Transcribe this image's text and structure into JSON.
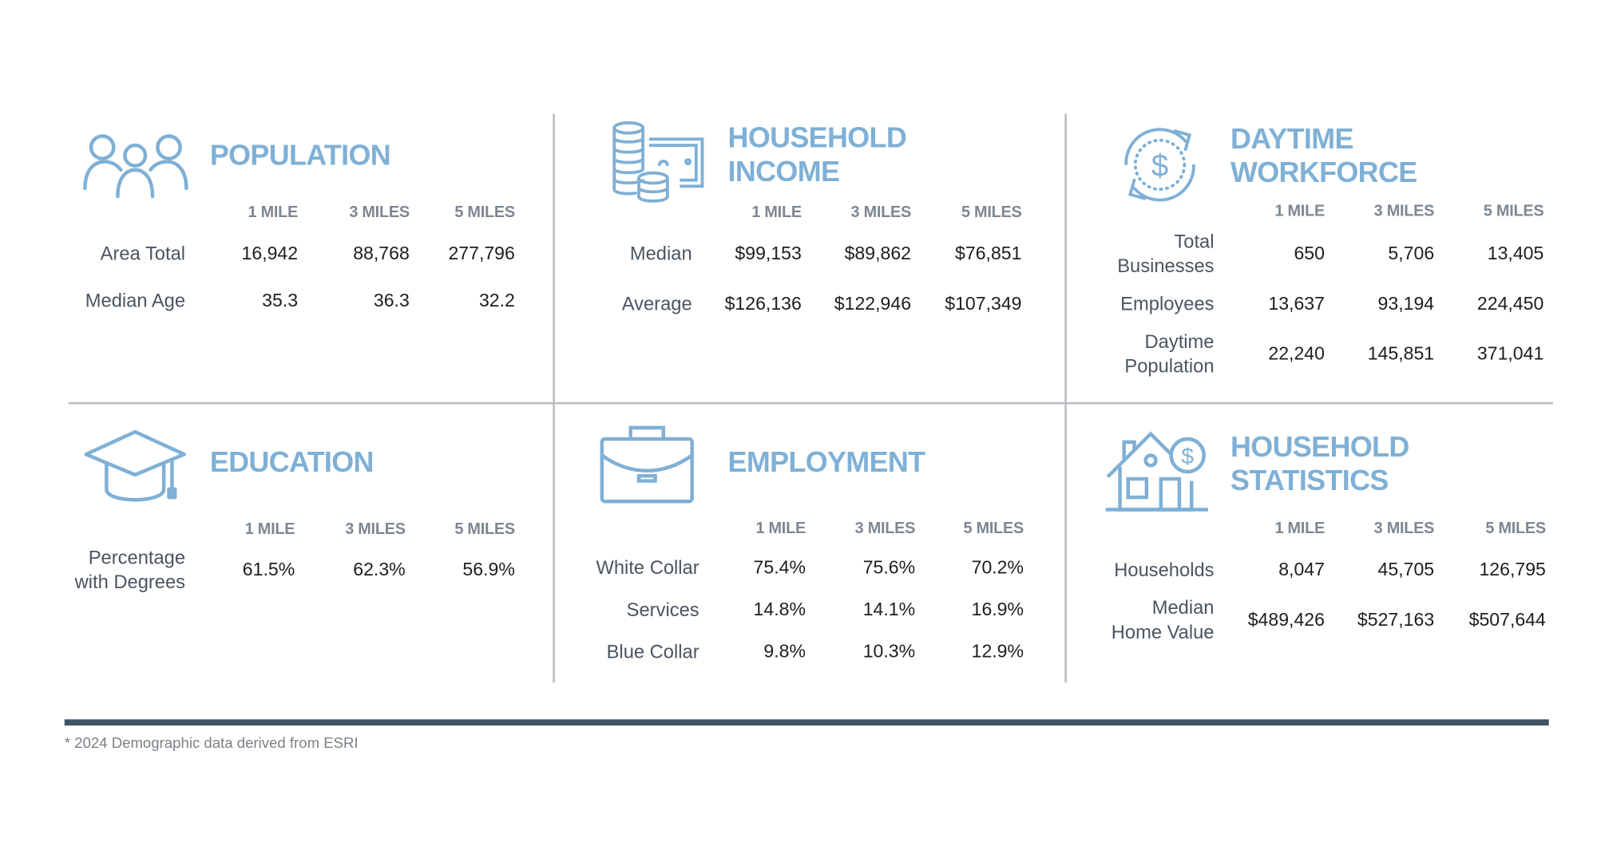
{
  "accent_color": "#7fb0d6",
  "rule_color": "#3f5566",
  "columns": [
    "1 MILE",
    "3 MILES",
    "5 MILES"
  ],
  "sections": {
    "population": {
      "title": "POPULATION",
      "icon": "people-icon",
      "rows": [
        {
          "label": "Area Total",
          "values": [
            "16,942",
            "88,768",
            "277,796"
          ]
        },
        {
          "label": "Median Age",
          "values": [
            "35.3",
            "36.3",
            "32.2"
          ]
        }
      ]
    },
    "household_income": {
      "title": "HOUSEHOLD INCOME",
      "icon": "coins-cash-icon",
      "rows": [
        {
          "label": "Median",
          "values": [
            "$99,153",
            "$89,862",
            "$76,851"
          ]
        },
        {
          "label": "Average",
          "values": [
            "$126,136",
            "$122,946",
            "$107,349"
          ]
        }
      ]
    },
    "daytime_workforce": {
      "title": "DAYTIME WORKFORCE",
      "icon": "dollar-cycle-icon",
      "rows": [
        {
          "label": "Total Businesses",
          "values": [
            "650",
            "5,706",
            "13,405"
          ]
        },
        {
          "label": "Employees",
          "values": [
            "13,637",
            "93,194",
            "224,450"
          ]
        },
        {
          "label": "Daytime Population",
          "values": [
            "22,240",
            "145,851",
            "371,041"
          ]
        }
      ]
    },
    "education": {
      "title": "EDUCATION",
      "icon": "graduation-cap-icon",
      "rows": [
        {
          "label": "Percentage with Degrees",
          "values": [
            "61.5%",
            "62.3%",
            "56.9%"
          ]
        }
      ]
    },
    "employment": {
      "title": "EMPLOYMENT",
      "icon": "briefcase-icon",
      "rows": [
        {
          "label": "White Collar",
          "values": [
            "75.4%",
            "75.6%",
            "70.2%"
          ]
        },
        {
          "label": "Services",
          "values": [
            "14.8%",
            "14.1%",
            "16.9%"
          ]
        },
        {
          "label": "Blue Collar",
          "values": [
            "9.8%",
            "10.3%",
            "12.9%"
          ]
        }
      ]
    },
    "household_statistics": {
      "title": "HOUSEHOLD STATISTICS",
      "icon": "house-dollar-icon",
      "rows": [
        {
          "label": "Households",
          "values": [
            "8,047",
            "45,705",
            "126,795"
          ]
        },
        {
          "label": "Median Home Value",
          "values": [
            "$489,426",
            "$527,163",
            "$507,644"
          ]
        }
      ]
    }
  },
  "footnote": "* 2024 Demographic data derived from ESRI"
}
